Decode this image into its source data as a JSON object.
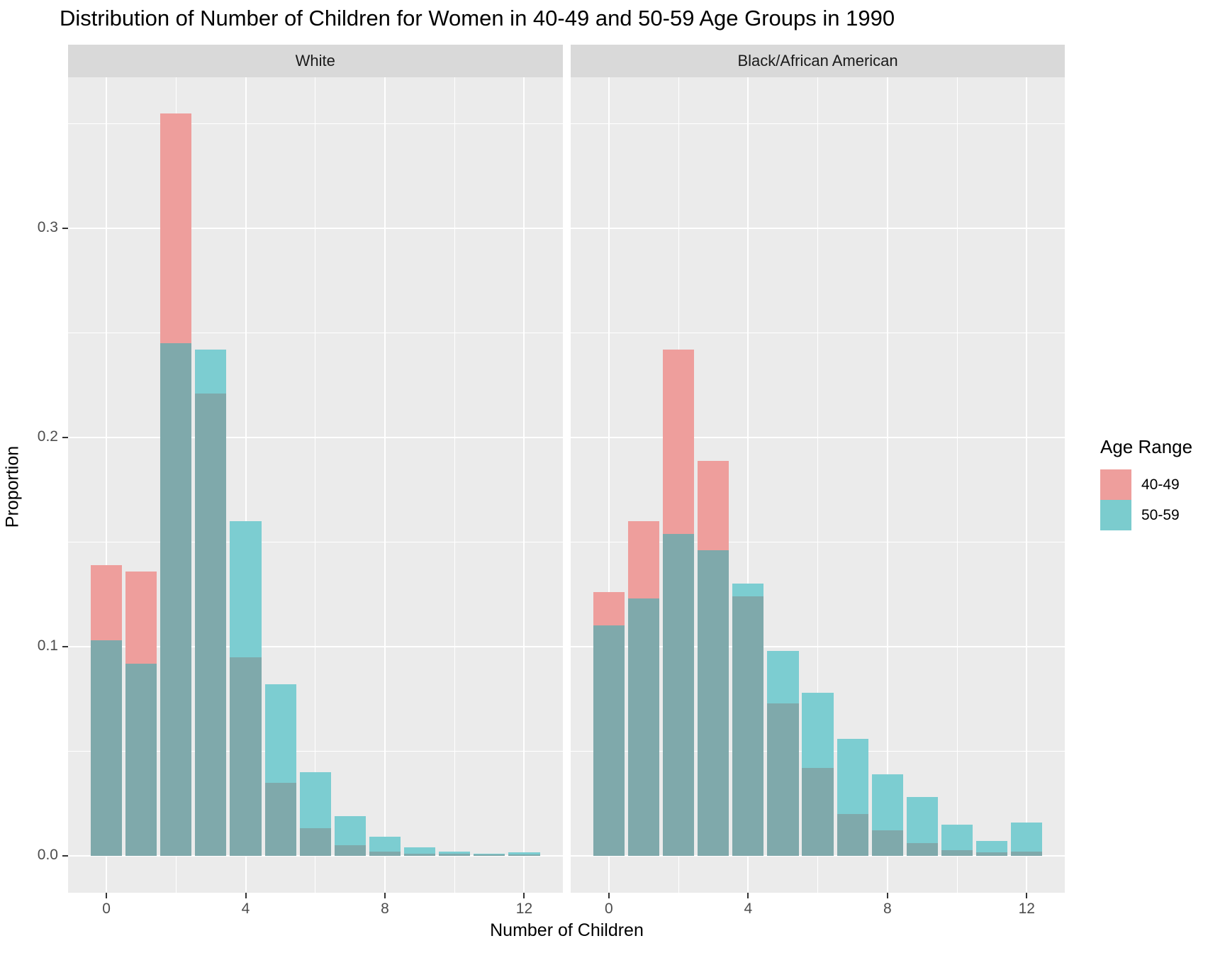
{
  "title": "Distribution of Number of Children for Women in 40-49 and 50-59 Age Groups in 1990",
  "axes": {
    "x_label": "Number of Children",
    "y_label": "Proportion",
    "x_ticks": [
      0,
      4,
      8,
      12
    ],
    "x_minor_ticks": [
      2,
      6,
      10
    ],
    "y_ticks": [
      {
        "label": "0.0",
        "value": 0.0
      },
      {
        "label": "0.1",
        "value": 0.1
      },
      {
        "label": "0.2",
        "value": 0.2
      },
      {
        "label": "0.3",
        "value": 0.3
      }
    ],
    "y_minor_ticks": [
      0.05,
      0.15,
      0.25,
      0.35
    ]
  },
  "legend": {
    "title": "Age Range",
    "entries": [
      {
        "label": "40-49",
        "color": "#ee9e9c"
      },
      {
        "label": "50-59",
        "color": "#7bccce"
      }
    ]
  },
  "colors": {
    "series_40_49": "#ee9e9c",
    "series_50_59": "#7ccdd1",
    "overlap": "#7fa9ab",
    "panel_bg": "#ebebeb",
    "strip_bg": "#d9d9d9",
    "grid": "#ffffff",
    "tick": "#333333",
    "tick_text": "#4d4d4d"
  },
  "chart_data": {
    "type": "bar",
    "subtype": "overlaid-histogram, faceted",
    "title": "Distribution of Number of Children for Women in 40-49 and 50-59 Age Groups in 1990",
    "xlabel": "Number of Children",
    "ylabel": "Proportion",
    "xlim": [
      -1.1,
      13.1
    ],
    "ylim": [
      -0.0177,
      0.3723
    ],
    "grid": "on",
    "legend_position": "right",
    "legend_title": "Age Range",
    "categories": [
      0,
      1,
      2,
      3,
      4,
      5,
      6,
      7,
      8,
      9,
      10,
      11,
      12
    ],
    "facets": [
      {
        "label": "White",
        "series": [
          {
            "name": "40-49",
            "values": [
              0.139,
              0.136,
              0.355,
              0.221,
              0.095,
              0.035,
              0.013,
              0.005,
              0.002,
              0.001,
              0.001,
              0.0005,
              0.0005
            ]
          },
          {
            "name": "50-59",
            "values": [
              0.103,
              0.092,
              0.245,
              0.242,
              0.16,
              0.082,
              0.04,
              0.019,
              0.009,
              0.004,
              0.002,
              0.001,
              0.0015
            ]
          }
        ]
      },
      {
        "label": "Black/African American",
        "series": [
          {
            "name": "40-49",
            "values": [
              0.126,
              0.16,
              0.242,
              0.189,
              0.124,
              0.073,
              0.042,
              0.02,
              0.012,
              0.006,
              0.0025,
              0.0015,
              0.002
            ]
          },
          {
            "name": "50-59",
            "values": [
              0.11,
              0.123,
              0.154,
              0.146,
              0.13,
              0.098,
              0.078,
              0.056,
              0.039,
              0.028,
              0.015,
              0.007,
              0.016
            ]
          }
        ]
      }
    ]
  }
}
